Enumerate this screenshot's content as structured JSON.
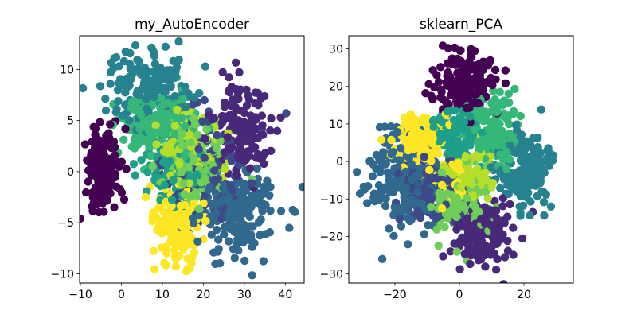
{
  "figure": {
    "background": "#ffffff",
    "palette_name": "viridis (10 discrete classes)"
  },
  "chart_data": [
    {
      "type": "scatter",
      "title": "my_AutoEncoder",
      "xlabel": "",
      "ylabel": "",
      "xlim": [
        -10.2,
        44.6
      ],
      "ylim": [
        -10.9,
        13.3
      ],
      "xticks": [
        -10,
        0,
        10,
        20,
        30,
        40
      ],
      "yticks": [
        -10,
        -5,
        0,
        5,
        10
      ],
      "grid": false,
      "legend": null,
      "marker_radius_px": 5.2,
      "clusters": [
        {
          "id": "class-0",
          "color": "#440154",
          "cx": -4.5,
          "cy": 0.2,
          "sx": 2.2,
          "sy": 2.0,
          "n": 150,
          "seed": 1
        },
        {
          "id": "class-1",
          "color": "#482878",
          "cx": 29.0,
          "cy": 4.0,
          "sx": 3.6,
          "sy": 2.2,
          "n": 150,
          "seed": 2
        },
        {
          "id": "class-2",
          "color": "#3e4989",
          "cx": 20.0,
          "cy": 0.5,
          "sx": 5.5,
          "sy": 2.6,
          "n": 120,
          "seed": 3
        },
        {
          "id": "class-3",
          "color": "#31688e",
          "cx": 28.5,
          "cy": -4.0,
          "sx": 5.0,
          "sy": 2.4,
          "n": 170,
          "seed": 4
        },
        {
          "id": "class-4",
          "color": "#26828e",
          "cx": 7.0,
          "cy": 8.3,
          "sx": 5.2,
          "sy": 1.9,
          "n": 170,
          "seed": 5
        },
        {
          "id": "class-5",
          "color": "#1f9e89",
          "cx": 13.0,
          "cy": 0.5,
          "sx": 3.6,
          "sy": 2.0,
          "n": 110,
          "seed": 6
        },
        {
          "id": "class-6",
          "color": "#35b779",
          "cx": 9.0,
          "cy": 4.6,
          "sx": 4.8,
          "sy": 1.8,
          "n": 160,
          "seed": 7
        },
        {
          "id": "class-7",
          "color": "#6ece58",
          "cx": 18.0,
          "cy": 1.0,
          "sx": 4.2,
          "sy": 2.2,
          "n": 150,
          "seed": 8
        },
        {
          "id": "class-8",
          "color": "#b5de2b",
          "cx": 16.0,
          "cy": 2.3,
          "sx": 4.0,
          "sy": 2.0,
          "n": 100,
          "seed": 9
        },
        {
          "id": "class-9",
          "color": "#fde725",
          "cx": 13.5,
          "cy": -5.3,
          "sx": 3.0,
          "sy": 2.0,
          "n": 150,
          "seed": 10
        }
      ]
    },
    {
      "type": "scatter",
      "title": "sklearn_PCA",
      "xlabel": "",
      "ylabel": "",
      "xlim": [
        -34.3,
        35.3
      ],
      "ylim": [
        -32.4,
        33.5
      ],
      "xticks": [
        -20,
        0,
        20
      ],
      "yticks": [
        -30,
        -20,
        -10,
        0,
        10,
        20,
        30
      ],
      "grid": false,
      "legend": null,
      "marker_radius_px": 5.2,
      "clusters": [
        {
          "id": "class-0",
          "color": "#440154",
          "cx": 1.5,
          "cy": 21.0,
          "sx": 4.5,
          "sy": 4.3,
          "n": 170,
          "seed": 11
        },
        {
          "id": "class-1",
          "color": "#482878",
          "cx": 7.0,
          "cy": -18.5,
          "sx": 4.5,
          "sy": 4.3,
          "n": 160,
          "seed": 12
        },
        {
          "id": "class-2",
          "color": "#3e4989",
          "cx": -9.0,
          "cy": -8.0,
          "sx": 5.5,
          "sy": 4.0,
          "n": 140,
          "seed": 13
        },
        {
          "id": "class-3",
          "color": "#31688e",
          "cx": -17.0,
          "cy": -5.0,
          "sx": 5.5,
          "sy": 6.5,
          "n": 175,
          "seed": 14
        },
        {
          "id": "class-4",
          "color": "#26828e",
          "cx": 20.0,
          "cy": -2.0,
          "sx": 4.8,
          "sy": 5.0,
          "n": 160,
          "seed": 15
        },
        {
          "id": "class-5",
          "color": "#1f9e89",
          "cx": -1.0,
          "cy": 7.0,
          "sx": 3.6,
          "sy": 3.6,
          "n": 120,
          "seed": 16
        },
        {
          "id": "class-6",
          "color": "#35b779",
          "cx": 11.0,
          "cy": 9.0,
          "sx": 4.2,
          "sy": 4.8,
          "n": 160,
          "seed": 17
        },
        {
          "id": "class-7",
          "color": "#6ece58",
          "cx": 0.0,
          "cy": -11.0,
          "sx": 4.6,
          "sy": 5.0,
          "n": 150,
          "seed": 18
        },
        {
          "id": "class-8",
          "color": "#b5de2b",
          "cx": 1.5,
          "cy": -4.0,
          "sx": 4.2,
          "sy": 3.6,
          "n": 100,
          "seed": 19
        },
        {
          "id": "class-9",
          "color": "#fde725",
          "cx": -11.0,
          "cy": 6.5,
          "sx": 4.4,
          "sy": 3.2,
          "n": 150,
          "seed": 20
        },
        {
          "id": "class-9b",
          "color": "#fde725",
          "cx": -2.0,
          "cy": -5.0,
          "sx": 4.0,
          "sy": 3.0,
          "n": 50,
          "seed": 21
        }
      ]
    }
  ]
}
